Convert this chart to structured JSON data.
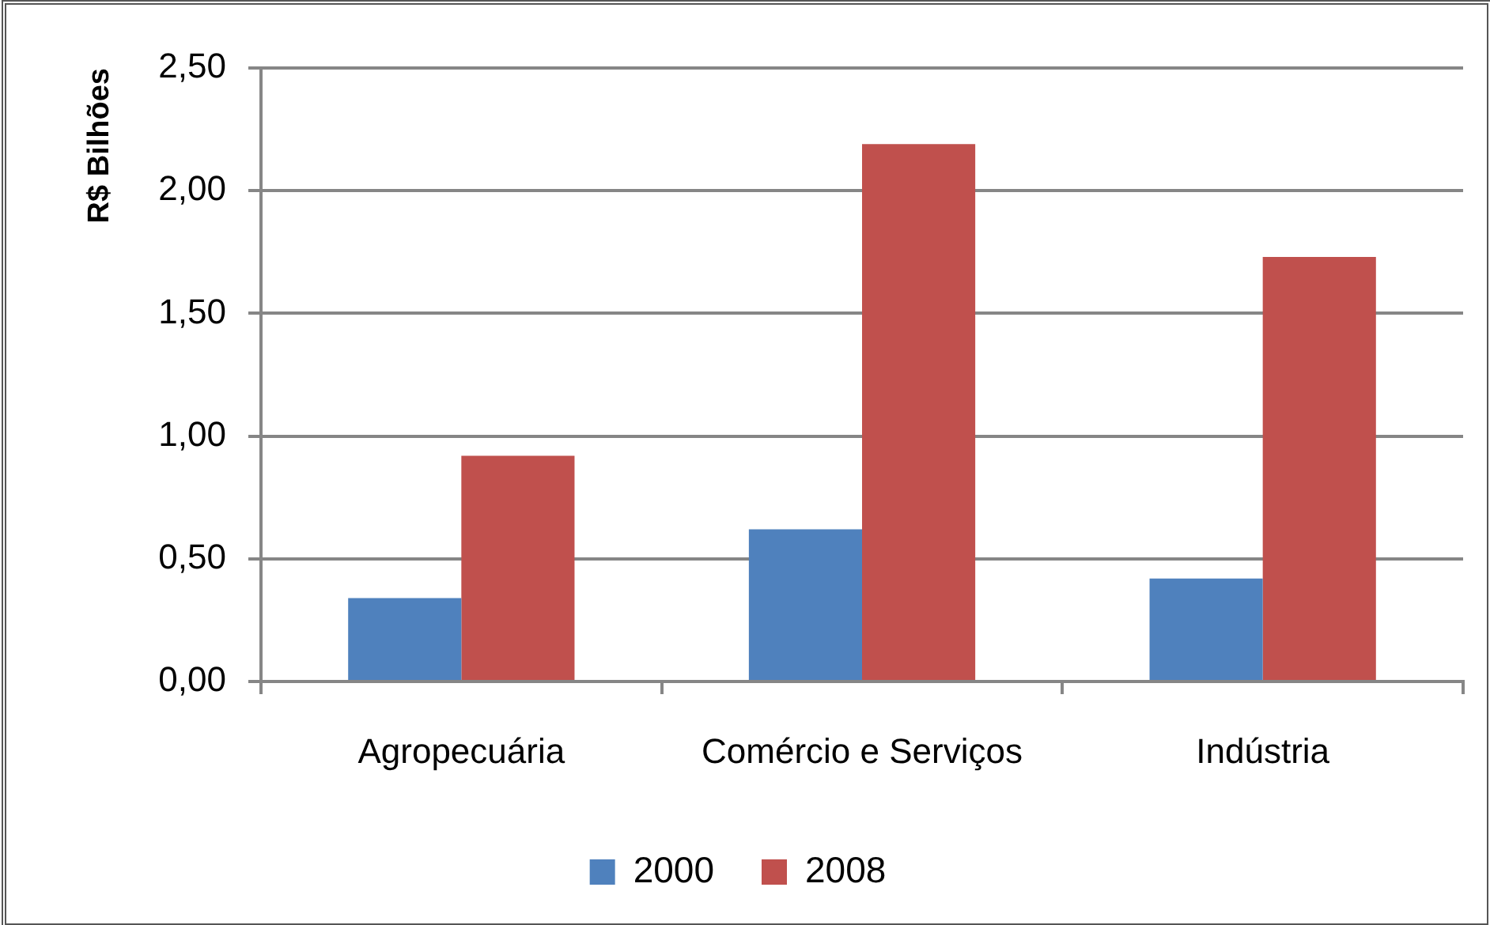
{
  "chart_data": {
    "type": "bar",
    "ylabel": "R$ Bilhões",
    "categories": [
      "Agropecuária",
      "Comércio e Serviços",
      "Indústria"
    ],
    "series": [
      {
        "name": "2000",
        "color": "#4f81bd",
        "values": [
          0.34,
          0.62,
          0.42
        ]
      },
      {
        "name": "2008",
        "color": "#c0504d",
        "values": [
          0.92,
          2.19,
          1.73
        ]
      }
    ],
    "ylim": [
      0,
      2.5
    ],
    "yticks": [
      {
        "value": 0,
        "label": "0,00"
      },
      {
        "value": 0.5,
        "label": "0,50"
      },
      {
        "value": 1,
        "label": "1,00"
      },
      {
        "value": 1.5,
        "label": "1,50"
      },
      {
        "value": 2,
        "label": "2,00"
      },
      {
        "value": 2.5,
        "label": "2,50"
      }
    ],
    "grid": "y",
    "legend": "bottom"
  }
}
